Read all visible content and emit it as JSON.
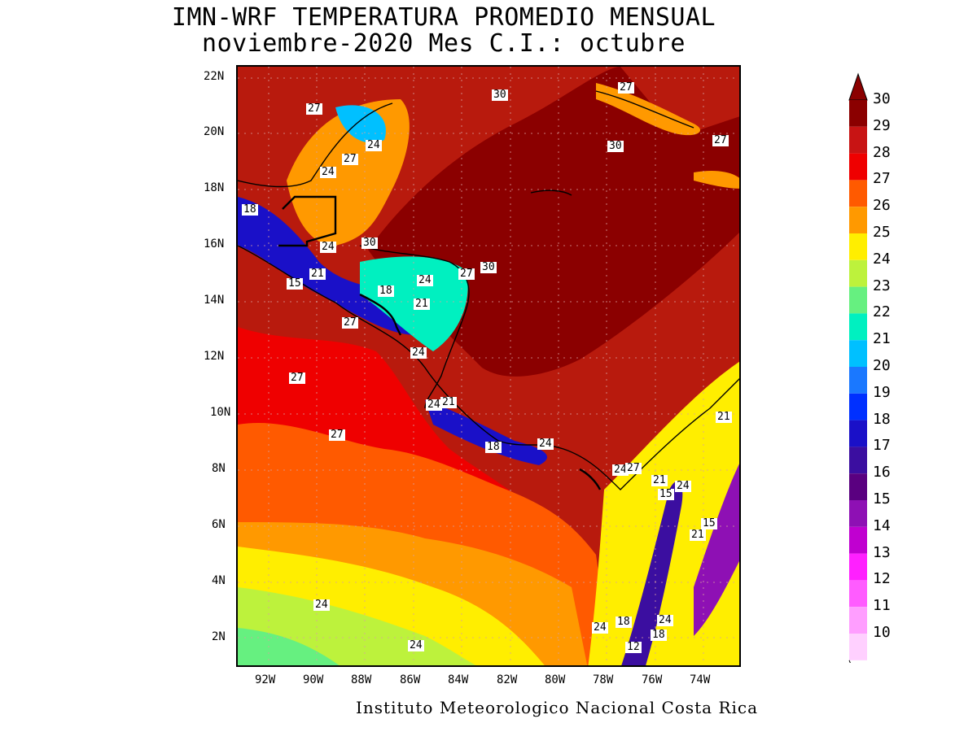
{
  "title": {
    "line1": "IMN-WRF  TEMPERATURA PROMEDIO MENSUAL",
    "line2": "noviembre-2020 Mes C.I.: octubre"
  },
  "footer": "Instituto Meteorologico Nacional Costa Rica",
  "axes": {
    "x_ticks": [
      "92W",
      "90W",
      "88W",
      "86W",
      "84W",
      "82W",
      "80W",
      "78W",
      "76W",
      "74W"
    ],
    "y_ticks": [
      "22N",
      "20N",
      "18N",
      "16N",
      "14N",
      "12N",
      "10N",
      "8N",
      "6N",
      "4N",
      "2N"
    ]
  },
  "legend": {
    "values": [
      "30",
      "29",
      "28",
      "27",
      "26",
      "25",
      "24",
      "23",
      "22",
      "21",
      "20",
      "19",
      "18",
      "17",
      "16",
      "15",
      "14",
      "13",
      "12",
      "11",
      "10"
    ],
    "colors": [
      "#8b0000",
      "#c81414",
      "#ef0000",
      "#ff5a00",
      "#ff9900",
      "#ffee00",
      "#bdf23c",
      "#66f080",
      "#00f0c0",
      "#00c0ff",
      "#1a78ff",
      "#0030ff",
      "#1a10c8",
      "#3b0ea0",
      "#5a0080",
      "#8e10b4",
      "#c000d0",
      "#ff20ff",
      "#ff5cff",
      "#ff9eff",
      "#ffd0ff"
    ]
  },
  "map": {
    "contour_labels": [
      "27",
      "30",
      "27",
      "24",
      "27",
      "30",
      "27",
      "24",
      "18",
      "24",
      "30",
      "30",
      "27",
      "21",
      "15",
      "18",
      "24",
      "21",
      "27",
      "24",
      "27",
      "24",
      "21",
      "27",
      "18",
      "24",
      "24",
      "27",
      "21",
      "15",
      "24",
      "15",
      "21",
      "21",
      "24",
      "18",
      "24",
      "18",
      "12",
      "24",
      "24"
    ]
  }
}
